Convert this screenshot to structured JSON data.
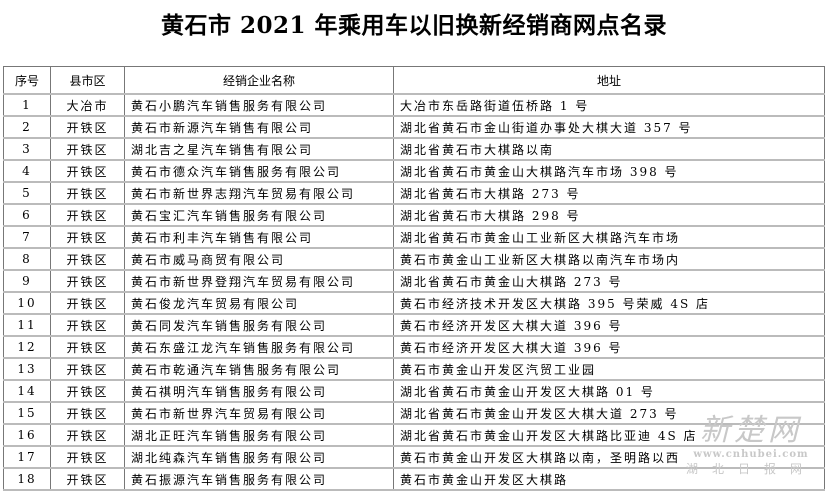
{
  "title": "黄石市 2021 年乘用车以旧换新经销商网点名录",
  "table": {
    "headers": [
      "序号",
      "县市区",
      "经销企业名称",
      "地址"
    ],
    "rows": [
      [
        "1",
        "大冶市",
        "黄石小鹏汽车销售服务有限公司",
        "大冶市东岳路街道伍桥路 1 号"
      ],
      [
        "2",
        "开铁区",
        "黄石市新源汽车销售有限公司",
        "湖北省黄石市金山街道办事处大棋大道 357 号"
      ],
      [
        "3",
        "开铁区",
        "湖北吉之星汽车销售有限公司",
        "湖北省黄石市大棋路以南"
      ],
      [
        "4",
        "开铁区",
        "黄石市德众汽车销售服务有限公司",
        "湖北省黄石市黄金山大棋路汽车市场 398 号"
      ],
      [
        "5",
        "开铁区",
        "黄石市新世界志翔汽车贸易有限公司",
        "湖北省黄石市大棋路 273 号"
      ],
      [
        "6",
        "开铁区",
        "黄石宝汇汽车销售服务有限公司",
        "湖北省黄石市大棋路 298 号"
      ],
      [
        "7",
        "开铁区",
        "黄石市利丰汽车销售有限公司",
        "湖北省黄石市黄金山工业新区大棋路汽车市场"
      ],
      [
        "8",
        "开铁区",
        "黄石市威马商贸有限公司",
        "黄石市黄金山工业新区大棋路以南汽车市场内"
      ],
      [
        "9",
        "开铁区",
        "黄石市新世界登翔汽车贸易有限公司",
        "湖北省黄石市黄金山大棋路 273 号"
      ],
      [
        "10",
        "开铁区",
        "黄石俊龙汽车贸易有限公司",
        "黄石市经济技术开发区大棋路 395 号荣威 4S 店"
      ],
      [
        "11",
        "开铁区",
        "黄石同发汽车销售服务有限公司",
        "黄石市经济开发区大棋大道 396 号"
      ],
      [
        "12",
        "开铁区",
        "黄石东盛江龙汽车销售服务有限公司",
        "黄石市经济开发区大棋大道 396 号"
      ],
      [
        "13",
        "开铁区",
        "黄石市乾通汽车销售服务有限公司",
        "黄石市黄金山开发区汽贸工业园"
      ],
      [
        "14",
        "开铁区",
        "黄石祺明汽车销售服务有限公司",
        "湖北省黄石市黄金山开发区大棋路 01 号"
      ],
      [
        "15",
        "开铁区",
        "黄石市新世界汽车贸易有限公司",
        "湖北省黄石市黄金山开发区大棋大道 273 号"
      ],
      [
        "16",
        "开铁区",
        "湖北正旺汽车销售服务有限公司",
        "湖北省黄石市黄金山开发区大棋路比亚迪 4S 店"
      ],
      [
        "17",
        "开铁区",
        "湖北纯森汽车销售服务有限公司",
        "黄石市黄金山开发区大棋路以南，圣明路以西"
      ],
      [
        "18",
        "开铁区",
        "黄石振源汽车销售服务有限公司",
        "黄石市黄金山开发区大棋路"
      ]
    ]
  },
  "watermark": {
    "name": "新楚网",
    "url": "www.cnhubei.com",
    "org": "湖北日报网"
  }
}
